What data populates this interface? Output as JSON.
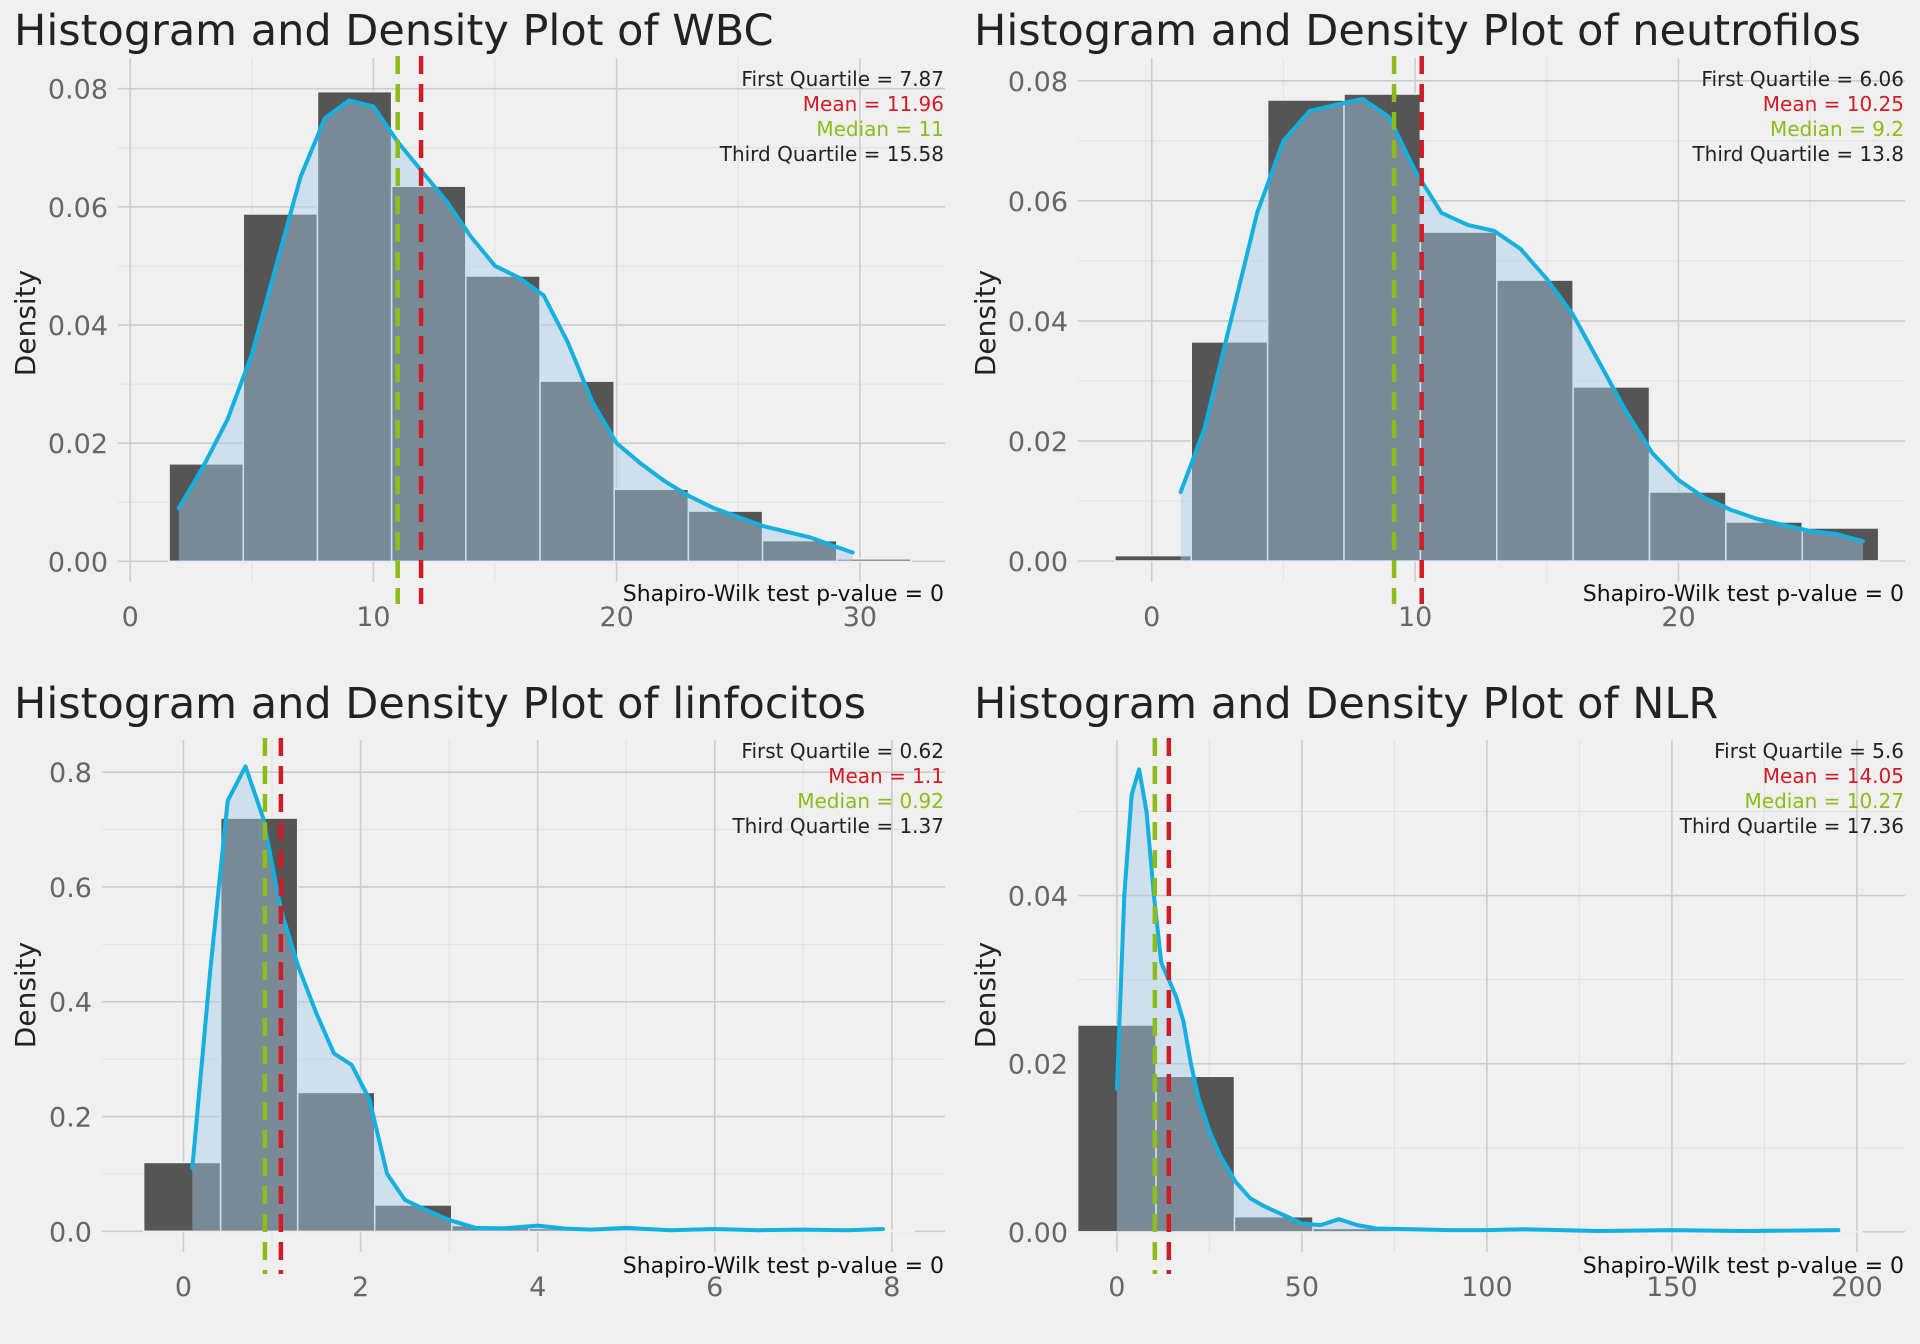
{
  "colors": {
    "background": "#f0f0f0",
    "grid_major": "#cccccc",
    "grid_minor": "#e0e0e0",
    "hist_fill": "#555555",
    "density_line": "#13b0e0",
    "density_fill": "#a7cbe6",
    "mean_line": "#d11b25",
    "median_line": "#8dbb1a",
    "quartile_text": "#222222",
    "mean_text": "#d11b25",
    "median_text": "#8dbb1a"
  },
  "chart_data": [
    {
      "type": "histogram-density",
      "title": "Histogram and Density Plot of WBC",
      "ylabel": "Density",
      "xlim": [
        -0.5,
        33.5
      ],
      "ylim": [
        -0.0035,
        0.0852
      ],
      "xticks": [
        0,
        10,
        20,
        30
      ],
      "yticks": [
        0.0,
        0.02,
        0.04,
        0.06,
        0.08
      ],
      "ytick_decimals": 2,
      "bins": {
        "edges": [
          1.6,
          4.65,
          7.7,
          10.75,
          13.8,
          16.85,
          19.9,
          22.95,
          26.0,
          29.05,
          32.1
        ],
        "values": [
          0.0165,
          0.0588,
          0.0795,
          0.0635,
          0.0483,
          0.0305,
          0.0122,
          0.0085,
          0.0035,
          0.0004
        ]
      },
      "density": {
        "x": [
          2,
          3,
          4,
          5,
          6,
          7,
          8,
          9,
          10,
          11,
          12,
          13,
          14,
          15,
          16,
          17,
          18,
          19,
          20,
          21,
          22,
          23,
          24,
          25,
          26,
          27,
          28,
          29,
          29.7
        ],
        "y": [
          0.009,
          0.016,
          0.024,
          0.035,
          0.05,
          0.065,
          0.075,
          0.078,
          0.077,
          0.071,
          0.066,
          0.061,
          0.055,
          0.05,
          0.048,
          0.045,
          0.037,
          0.027,
          0.02,
          0.0165,
          0.0135,
          0.011,
          0.009,
          0.0075,
          0.006,
          0.005,
          0.004,
          0.0025,
          0.0015
        ]
      },
      "mean": 11.96,
      "median": 11,
      "annotations": {
        "q1": "First Quartile = 7.87",
        "mean": "Mean = 11.96",
        "median": "Median = 11",
        "q3": "Third Quartile = 15.58"
      },
      "shapiro": "Shapiro-Wilk test p-value = 0"
    },
    {
      "type": "histogram-density",
      "title": "Histogram and Density Plot of neutrofilos",
      "ylabel": "Density",
      "xlim": [
        -2.8,
        28.6
      ],
      "ylim": [
        -0.0035,
        0.0838
      ],
      "xticks": [
        0,
        10,
        20
      ],
      "yticks": [
        0.0,
        0.02,
        0.04,
        0.06,
        0.08
      ],
      "ytick_decimals": 2,
      "bins": {
        "edges": [
          -1.4,
          1.5,
          4.4,
          7.3,
          10.2,
          13.1,
          16.0,
          18.9,
          21.8,
          24.7,
          27.6
        ],
        "values": [
          0.0009,
          0.0365,
          0.0768,
          0.0778,
          0.0548,
          0.0468,
          0.029,
          0.0115,
          0.0065,
          0.0055
        ]
      },
      "density": {
        "x": [
          1.1,
          2,
          3,
          4,
          5,
          6,
          7,
          8,
          9,
          10,
          11,
          12,
          13,
          14,
          15,
          16,
          17,
          18,
          19,
          20,
          21,
          22,
          23,
          24,
          25,
          26,
          27
        ],
        "y": [
          0.0115,
          0.022,
          0.04,
          0.058,
          0.07,
          0.075,
          0.076,
          0.077,
          0.074,
          0.065,
          0.058,
          0.056,
          0.055,
          0.052,
          0.047,
          0.041,
          0.033,
          0.025,
          0.018,
          0.0135,
          0.0105,
          0.0085,
          0.007,
          0.006,
          0.005,
          0.0045,
          0.0033
        ]
      },
      "mean": 10.25,
      "median": 9.2,
      "annotations": {
        "q1": "First Quartile = 6.06",
        "mean": "Mean = 10.25",
        "median": "Median = 9.2",
        "q3": "Third Quartile = 13.8"
      },
      "shapiro": "Shapiro-Wilk test p-value = 0"
    },
    {
      "type": "histogram-density",
      "title": "Histogram and Density Plot of linfocitos",
      "ylabel": "Density",
      "xlim": [
        -0.92,
        8.6
      ],
      "ylim": [
        -0.036,
        0.856
      ],
      "xticks": [
        0,
        2,
        4,
        6,
        8
      ],
      "yticks": [
        0.0,
        0.2,
        0.4,
        0.6,
        0.8
      ],
      "ytick_decimals": 1,
      "bins": {
        "edges": [
          -0.45,
          0.42,
          1.29,
          2.16,
          3.03,
          3.9,
          4.77,
          5.64,
          6.51,
          7.38,
          8.25
        ],
        "values": [
          0.12,
          0.72,
          0.242,
          0.046,
          0.01,
          0.005,
          0.003,
          0.002,
          0.002,
          0.002
        ]
      },
      "density": {
        "x": [
          0.1,
          0.3,
          0.5,
          0.7,
          0.9,
          1.1,
          1.3,
          1.5,
          1.7,
          1.9,
          2.1,
          2.3,
          2.5,
          2.7,
          3.0,
          3.3,
          3.6,
          4.0,
          4.3,
          4.6,
          5.0,
          5.5,
          6.0,
          6.5,
          7.0,
          7.5,
          7.9
        ],
        "y": [
          0.11,
          0.45,
          0.75,
          0.81,
          0.72,
          0.56,
          0.46,
          0.38,
          0.31,
          0.29,
          0.23,
          0.1,
          0.055,
          0.04,
          0.02,
          0.006,
          0.005,
          0.01,
          0.005,
          0.003,
          0.006,
          0.002,
          0.004,
          0.002,
          0.003,
          0.002,
          0.004
        ]
      },
      "mean": 1.1,
      "median": 0.92,
      "annotations": {
        "q1": "First Quartile = 0.62",
        "mean": "Mean = 1.1",
        "median": "Median = 0.92",
        "q3": "Third Quartile = 1.37"
      },
      "shapiro": "Shapiro-Wilk test p-value = 0"
    },
    {
      "type": "histogram-density",
      "title": "Histogram and Density Plot of NLR",
      "ylabel": "Density",
      "xlim": [
        -10.5,
        213
      ],
      "ylim": [
        -0.0024,
        0.0585
      ],
      "xticks": [
        0,
        50,
        100,
        150,
        200
      ],
      "yticks": [
        0.0,
        0.02,
        0.04
      ],
      "ytick_decimals": 2,
      "bins": {
        "edges": [
          -10.6,
          10.6,
          31.8,
          53.0,
          74.2,
          95.4,
          116.6,
          137.8,
          159.0,
          180.2,
          201.4
        ],
        "values": [
          0.0246,
          0.0185,
          0.0018,
          0.0004,
          0.0001,
          0.0001,
          0.0001,
          5e-05,
          3e-05,
          3e-05
        ]
      },
      "density": {
        "x": [
          0,
          2,
          4,
          6,
          8,
          10,
          12,
          14,
          16,
          18,
          20,
          22,
          25,
          28,
          32,
          36,
          40,
          45,
          50,
          55,
          60,
          65,
          70,
          80,
          90,
          100,
          110,
          120,
          130,
          150,
          170,
          195
        ],
        "y": [
          0.017,
          0.04,
          0.052,
          0.055,
          0.05,
          0.04,
          0.032,
          0.03,
          0.028,
          0.025,
          0.02,
          0.016,
          0.012,
          0.009,
          0.006,
          0.004,
          0.003,
          0.002,
          0.001,
          0.0008,
          0.0015,
          0.0008,
          0.0004,
          0.0003,
          0.0002,
          0.0002,
          0.0003,
          0.0002,
          0.0001,
          0.0002,
          0.0001,
          0.0002
        ]
      },
      "mean": 14.05,
      "median": 10.27,
      "annotations": {
        "q1": "First Quartile = 5.6",
        "mean": "Mean = 14.05",
        "median": "Median = 10.27",
        "q3": "Third Quartile = 17.36"
      },
      "shapiro": "Shapiro-Wilk test p-value = 0"
    }
  ]
}
